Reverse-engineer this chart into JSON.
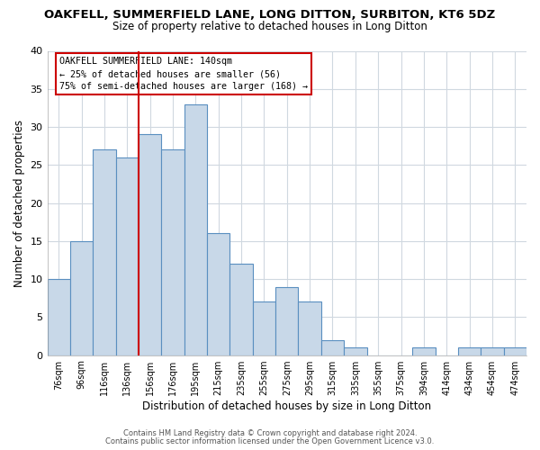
{
  "title": "OAKFELL, SUMMERFIELD LANE, LONG DITTON, SURBITON, KT6 5DZ",
  "subtitle": "Size of property relative to detached houses in Long Ditton",
  "xlabel": "Distribution of detached houses by size in Long Ditton",
  "ylabel": "Number of detached properties",
  "bar_labels": [
    "76sqm",
    "96sqm",
    "116sqm",
    "136sqm",
    "156sqm",
    "176sqm",
    "195sqm",
    "215sqm",
    "235sqm",
    "255sqm",
    "275sqm",
    "295sqm",
    "315sqm",
    "335sqm",
    "355sqm",
    "375sqm",
    "394sqm",
    "414sqm",
    "434sqm",
    "454sqm",
    "474sqm"
  ],
  "bar_heights": [
    10,
    15,
    27,
    26,
    29,
    27,
    33,
    16,
    12,
    7,
    9,
    7,
    2,
    1,
    0,
    0,
    1,
    0,
    1,
    1,
    1
  ],
  "bar_color": "#c8d8e8",
  "bar_edge_color": "#5a8fc0",
  "ylim": [
    0,
    40
  ],
  "yticks": [
    0,
    5,
    10,
    15,
    20,
    25,
    30,
    35,
    40
  ],
  "property_line_color": "#cc0000",
  "annotation_title": "OAKFELL SUMMERFIELD LANE: 140sqm",
  "annotation_line1": "← 25% of detached houses are smaller (56)",
  "annotation_line2": "75% of semi-detached houses are larger (168) →",
  "annotation_box_edge_color": "#cc0000",
  "footnote1": "Contains HM Land Registry data © Crown copyright and database right 2024.",
  "footnote2": "Contains public sector information licensed under the Open Government Licence v3.0.",
  "background_color": "#ffffff",
  "grid_color": "#d0d8e0"
}
